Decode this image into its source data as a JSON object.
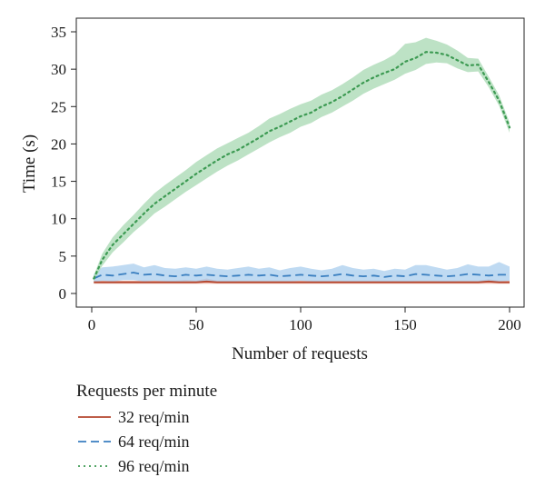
{
  "chart_data": {
    "type": "line",
    "xlabel": "Number of requests",
    "ylabel": "Time (s)",
    "xlim": [
      0,
      200
    ],
    "ylim": [
      0,
      35
    ],
    "x_ticks": [
      0,
      50,
      100,
      150,
      200
    ],
    "y_ticks": [
      0,
      5,
      10,
      15,
      20,
      25,
      30,
      35
    ],
    "grid": false,
    "legend": {
      "title": "Requests per minute",
      "placement": "below"
    },
    "x": [
      1,
      5,
      10,
      15,
      20,
      25,
      30,
      35,
      40,
      45,
      50,
      55,
      60,
      65,
      70,
      75,
      80,
      85,
      90,
      95,
      100,
      105,
      110,
      115,
      120,
      125,
      130,
      135,
      140,
      145,
      150,
      155,
      160,
      165,
      170,
      175,
      180,
      185,
      190,
      195,
      200
    ],
    "series": [
      {
        "name": "32 req/min",
        "color": "#b5472f",
        "band_color": "#e8a090",
        "style": "solid",
        "values": [
          1.5,
          1.5,
          1.5,
          1.5,
          1.5,
          1.5,
          1.5,
          1.5,
          1.5,
          1.5,
          1.5,
          1.6,
          1.5,
          1.5,
          1.5,
          1.5,
          1.5,
          1.5,
          1.5,
          1.5,
          1.5,
          1.5,
          1.5,
          1.5,
          1.5,
          1.5,
          1.5,
          1.5,
          1.5,
          1.5,
          1.5,
          1.5,
          1.5,
          1.5,
          1.5,
          1.5,
          1.5,
          1.5,
          1.6,
          1.5,
          1.5
        ],
        "lower": [
          1.3,
          1.3,
          1.3,
          1.3,
          1.3,
          1.3,
          1.3,
          1.3,
          1.3,
          1.3,
          1.3,
          1.3,
          1.3,
          1.3,
          1.3,
          1.3,
          1.3,
          1.3,
          1.3,
          1.3,
          1.3,
          1.3,
          1.3,
          1.3,
          1.3,
          1.3,
          1.3,
          1.3,
          1.3,
          1.3,
          1.3,
          1.3,
          1.3,
          1.3,
          1.3,
          1.3,
          1.3,
          1.3,
          1.3,
          1.3,
          1.3
        ],
        "upper": [
          1.7,
          1.7,
          1.7,
          1.7,
          1.7,
          1.7,
          1.7,
          1.7,
          1.7,
          1.8,
          1.7,
          2.0,
          1.7,
          1.7,
          1.7,
          1.7,
          1.7,
          1.7,
          1.7,
          1.7,
          1.7,
          1.7,
          1.7,
          1.7,
          1.7,
          1.7,
          1.7,
          1.7,
          1.7,
          1.7,
          1.7,
          1.7,
          1.7,
          1.7,
          1.7,
          1.7,
          1.7,
          1.7,
          1.9,
          1.7,
          1.7
        ]
      },
      {
        "name": "64 req/min",
        "color": "#3a7fc0",
        "band_color": "#a9cdee",
        "style": "dashed",
        "values": [
          2.0,
          2.5,
          2.4,
          2.6,
          2.8,
          2.5,
          2.6,
          2.4,
          2.3,
          2.5,
          2.4,
          2.5,
          2.4,
          2.3,
          2.4,
          2.5,
          2.4,
          2.5,
          2.3,
          2.4,
          2.5,
          2.4,
          2.3,
          2.4,
          2.6,
          2.4,
          2.3,
          2.4,
          2.2,
          2.4,
          2.3,
          2.6,
          2.5,
          2.4,
          2.3,
          2.4,
          2.6,
          2.5,
          2.4,
          2.5,
          2.5
        ],
        "lower": [
          1.5,
          1.7,
          1.6,
          1.8,
          1.8,
          1.6,
          1.7,
          1.6,
          1.5,
          1.6,
          1.6,
          1.6,
          1.6,
          1.5,
          1.6,
          1.6,
          1.6,
          1.6,
          1.6,
          1.6,
          1.7,
          1.6,
          1.5,
          1.6,
          1.6,
          1.5,
          1.5,
          1.6,
          1.5,
          1.6,
          1.5,
          1.6,
          1.6,
          1.6,
          1.5,
          1.6,
          1.6,
          1.6,
          1.6,
          1.6,
          1.7
        ],
        "upper": [
          2.6,
          3.5,
          3.6,
          3.8,
          4.0,
          3.5,
          3.8,
          3.4,
          3.3,
          3.5,
          3.3,
          3.6,
          3.3,
          3.2,
          3.4,
          3.6,
          3.3,
          3.5,
          3.1,
          3.4,
          3.6,
          3.3,
          3.1,
          3.3,
          3.8,
          3.4,
          3.2,
          3.3,
          3.0,
          3.3,
          3.2,
          3.8,
          3.8,
          3.5,
          3.2,
          3.4,
          3.9,
          3.6,
          3.6,
          4.2,
          3.6
        ]
      },
      {
        "name": "96 req/min",
        "color": "#3c9a52",
        "band_color": "#a7d8b2",
        "style": "dotted",
        "values": [
          2.0,
          4.5,
          6.5,
          7.9,
          9.3,
          10.7,
          12.0,
          13.0,
          14.0,
          15.0,
          16.0,
          16.9,
          17.8,
          18.6,
          19.2,
          20.0,
          20.8,
          21.7,
          22.3,
          23.0,
          23.7,
          24.2,
          25.0,
          25.6,
          26.4,
          27.3,
          28.2,
          28.9,
          29.5,
          30.0,
          31.0,
          31.5,
          32.3,
          32.2,
          31.9,
          31.2,
          30.5,
          30.6,
          28.3,
          25.8,
          22.2
        ],
        "lower": [
          1.6,
          3.7,
          5.5,
          6.8,
          8.2,
          9.4,
          10.7,
          11.6,
          12.6,
          13.6,
          14.5,
          15.4,
          16.3,
          17.1,
          17.8,
          18.6,
          19.4,
          20.2,
          20.9,
          21.5,
          22.3,
          22.8,
          23.6,
          24.2,
          25.0,
          25.8,
          26.7,
          27.4,
          28.0,
          28.6,
          29.4,
          29.9,
          30.7,
          30.9,
          30.8,
          30.1,
          29.6,
          29.7,
          27.6,
          25.1,
          21.5
        ],
        "upper": [
          2.4,
          5.3,
          7.5,
          9.1,
          10.5,
          12.0,
          13.4,
          14.5,
          15.5,
          16.5,
          17.6,
          18.5,
          19.4,
          20.1,
          20.8,
          21.5,
          22.4,
          23.4,
          24.0,
          24.7,
          25.3,
          25.8,
          26.6,
          27.2,
          28.0,
          28.9,
          29.9,
          30.6,
          31.2,
          32.0,
          33.4,
          33.6,
          34.2,
          33.8,
          33.3,
          32.5,
          31.5,
          31.4,
          29.0,
          26.5,
          22.9
        ]
      }
    ]
  }
}
